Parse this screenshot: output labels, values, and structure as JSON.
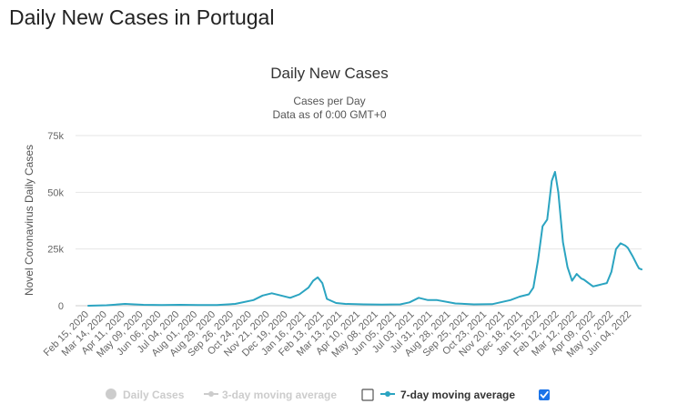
{
  "page": {
    "heading": "Daily New Cases in Portugal"
  },
  "chart_data": {
    "type": "line",
    "title": "Daily New Cases",
    "subtitle_lines": [
      "Cases per Day",
      "Data as of 0:00 GMT+0"
    ],
    "ylabel": "Novel Coronavirus Daily Cases",
    "xlabel": "",
    "ylim": [
      0,
      75000
    ],
    "yticks": [
      0,
      25000,
      50000,
      75000
    ],
    "ytick_labels": [
      "0",
      "25k",
      "50k",
      "75k"
    ],
    "grid": true,
    "xtick_labels": [
      "Feb 15, 2020",
      "Mar 14, 2020",
      "Apr 11, 2020",
      "May 09, 2020",
      "Jun 06, 2020",
      "Jul 04, 2020",
      "Aug 01, 2020",
      "Aug 29, 2020",
      "Sep 26, 2020",
      "Oct 24, 2020",
      "Nov 21, 2020",
      "Dec 19, 2020",
      "Jan 16, 2021",
      "Feb 13, 2021",
      "Mar 13, 2021",
      "Apr 10, 2021",
      "May 08, 2021",
      "Jun 05, 2021",
      "Jul 03, 2021",
      "Jul 31, 2021",
      "Aug 28, 2021",
      "Sep 25, 2021",
      "Oct 23, 2021",
      "Nov 20, 2021",
      "Dec 18, 2021",
      "Jan 15, 2022",
      "Feb 12, 2022",
      "Mar 12, 2022",
      "Apr 09, 2022",
      "May 07, 2022",
      "Jun 04, 2022"
    ],
    "legend": {
      "placement": "bottom",
      "items": [
        {
          "label": "Daily Cases",
          "enabled": false
        },
        {
          "label": "3-day moving average",
          "enabled": false
        },
        {
          "label": "7-day moving average",
          "enabled": true
        }
      ]
    },
    "colors": {
      "series": "#2ba4c1",
      "grid": "#e6e6e6",
      "disabled_legend": "#cccccc",
      "checkbox": "#1a73e8"
    },
    "series": [
      {
        "name": "7-day moving average",
        "x": [
          "2020-02-15",
          "2020-03-14",
          "2020-04-11",
          "2020-05-09",
          "2020-06-06",
          "2020-07-04",
          "2020-08-01",
          "2020-08-29",
          "2020-09-26",
          "2020-10-24",
          "2020-11-07",
          "2020-11-21",
          "2020-12-05",
          "2020-12-19",
          "2021-01-02",
          "2021-01-16",
          "2021-01-23",
          "2021-01-30",
          "2021-02-06",
          "2021-02-13",
          "2021-02-27",
          "2021-03-13",
          "2021-04-10",
          "2021-05-08",
          "2021-06-05",
          "2021-06-19",
          "2021-07-03",
          "2021-07-17",
          "2021-07-31",
          "2021-08-28",
          "2021-09-25",
          "2021-10-23",
          "2021-11-20",
          "2021-12-04",
          "2021-12-18",
          "2021-12-25",
          "2022-01-01",
          "2022-01-08",
          "2022-01-15",
          "2022-01-22",
          "2022-01-27",
          "2022-02-01",
          "2022-02-08",
          "2022-02-15",
          "2022-02-22",
          "2022-03-01",
          "2022-03-08",
          "2022-03-12",
          "2022-03-19",
          "2022-03-26",
          "2022-04-02",
          "2022-04-09",
          "2022-04-16",
          "2022-04-23",
          "2022-04-30",
          "2022-05-07",
          "2022-05-14",
          "2022-05-18",
          "2022-05-25",
          "2022-06-01",
          "2022-06-04",
          "2022-06-08"
        ],
        "values": [
          0,
          200,
          800,
          400,
          300,
          400,
          300,
          300,
          800,
          2500,
          4500,
          5500,
          4500,
          3500,
          5000,
          8000,
          11000,
          12500,
          10000,
          3000,
          1200,
          800,
          600,
          500,
          600,
          1500,
          3500,
          2500,
          2500,
          1000,
          600,
          700,
          2500,
          4000,
          5000,
          8000,
          20000,
          35000,
          38000,
          55000,
          59000,
          50000,
          28000,
          17000,
          11000,
          14000,
          12000,
          11500,
          10000,
          8500,
          9000,
          9500,
          10000,
          15000,
          25000,
          27500,
          26500,
          25500,
          22000,
          18000,
          16500,
          16000
        ]
      }
    ]
  }
}
